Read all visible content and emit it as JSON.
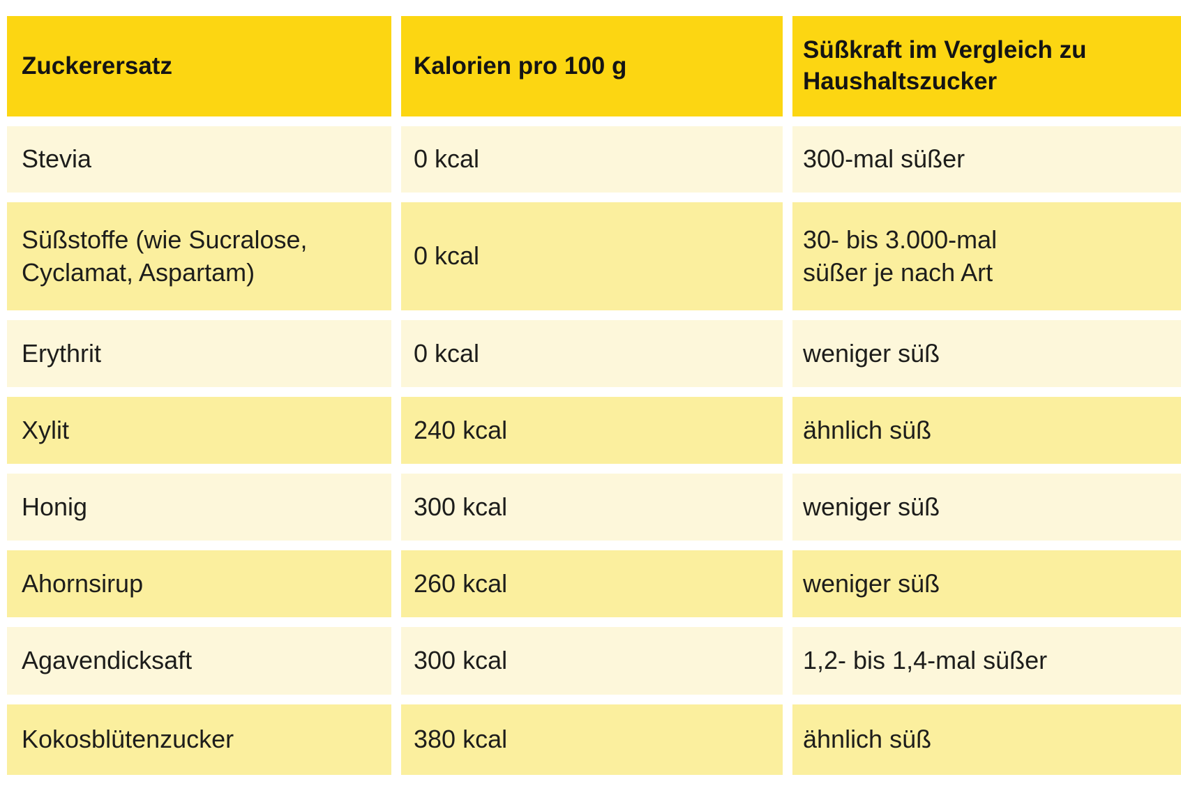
{
  "colors": {
    "background": "#ffffff",
    "header_bg": "#fcd612",
    "row_light_bg": "#fdf7da",
    "row_dark_bg": "#fbef9e",
    "text": "#1d1d1b"
  },
  "header": {
    "col1": "Zuckerersatz",
    "col2": "Kalorien pro 100 g",
    "col3": "Süßkraft im Vergleich zu\nHaushaltszucker"
  },
  "rows": [
    {
      "substitute": "Stevia",
      "calories": "0 kcal",
      "sweetness": "300-mal süßer"
    },
    {
      "substitute": "Süßstoffe (wie Sucralose,\nCyclamat, Aspartam)",
      "calories": "0 kcal",
      "sweetness": "30- bis 3.000-mal\nsüßer je nach Art"
    },
    {
      "substitute": "Erythrit",
      "calories": "0 kcal",
      "sweetness": "weniger süß"
    },
    {
      "substitute": "Xylit",
      "calories": "240 kcal",
      "sweetness": "ähnlich süß"
    },
    {
      "substitute": "Honig",
      "calories": "300 kcal",
      "sweetness": "weniger süß"
    },
    {
      "substitute": "Ahornsirup",
      "calories": "260 kcal",
      "sweetness": "weniger süß"
    },
    {
      "substitute": "Agavendicksaft",
      "calories": "300 kcal",
      "sweetness": "1,2- bis 1,4-mal süßer"
    },
    {
      "substitute": "Kokosblütenzucker",
      "calories": "380 kcal",
      "sweetness": "ähnlich süß"
    }
  ],
  "chart_data": {
    "type": "table",
    "columns": [
      "Zuckerersatz",
      "Kalorien pro 100 g",
      "Süßkraft im Vergleich zu Haushaltszucker"
    ],
    "rows": [
      [
        "Stevia",
        "0 kcal",
        "300-mal süßer"
      ],
      [
        "Süßstoffe (wie Sucralose, Cyclamat, Aspartam)",
        "0 kcal",
        "30- bis 3.000-mal süßer je nach Art"
      ],
      [
        "Erythrit",
        "0 kcal",
        "weniger süß"
      ],
      [
        "Xylit",
        "240 kcal",
        "ähnlich süß"
      ],
      [
        "Honig",
        "300 kcal",
        "weniger süß"
      ],
      [
        "Ahornsirup",
        "260 kcal",
        "weniger süß"
      ],
      [
        "Agavendicksaft",
        "300 kcal",
        "1,2- bis 1,4-mal süßer"
      ],
      [
        "Kokosblütenzucker",
        "380 kcal",
        "ähnlich süß"
      ]
    ],
    "calories_kcal_per_100g": [
      0,
      0,
      0,
      240,
      300,
      260,
      300,
      380
    ],
    "layout": "striped rows, white gutters, yellow header"
  }
}
